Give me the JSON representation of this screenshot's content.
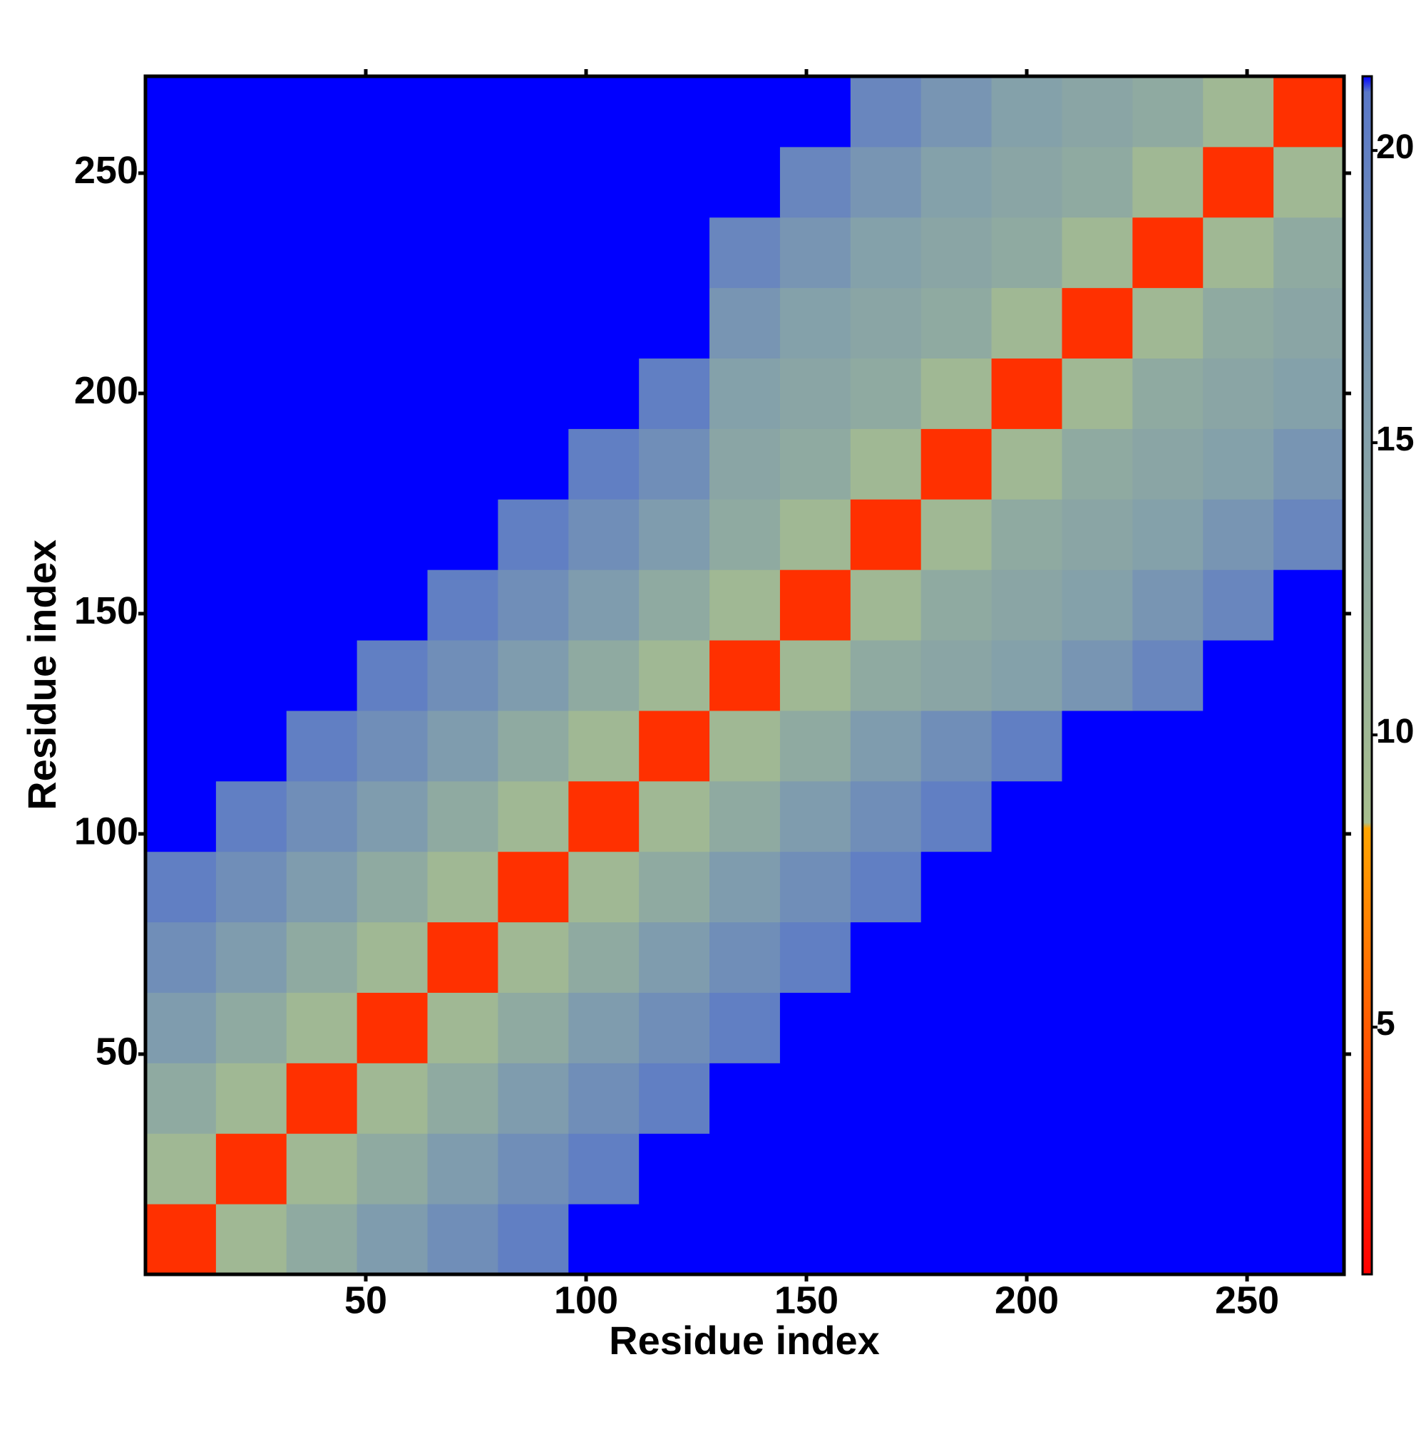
{
  "chart_data": {
    "type": "heatmap",
    "xlabel": "Residue index",
    "ylabel": "Residue index",
    "xbins": [
      0,
      16,
      32,
      48,
      64,
      80,
      96,
      112,
      128,
      144,
      160,
      176,
      192,
      208,
      224,
      240,
      256,
      272
    ],
    "ybins": [
      0,
      16,
      32,
      48,
      64,
      80,
      96,
      112,
      128,
      144,
      160,
      176,
      192,
      208,
      224,
      240,
      256,
      272
    ],
    "xlim": [
      0,
      272
    ],
    "ylim": [
      0,
      272
    ],
    "xticks": [
      50,
      100,
      150,
      200,
      250
    ],
    "yticks": [
      50,
      100,
      150,
      200,
      250
    ],
    "z": [
      [
        3,
        10,
        13,
        16,
        18,
        20,
        22,
        22,
        22,
        22,
        22,
        22,
        22,
        22,
        22,
        22,
        22
      ],
      [
        10,
        3,
        10,
        13,
        16,
        18,
        20,
        22,
        22,
        22,
        22,
        22,
        22,
        22,
        22,
        22,
        22
      ],
      [
        13,
        10,
        3,
        10,
        13,
        16,
        18,
        20,
        22,
        22,
        22,
        22,
        22,
        22,
        22,
        22,
        22
      ],
      [
        16,
        13,
        10,
        3,
        10,
        13,
        16,
        18,
        20,
        22,
        22,
        22,
        22,
        22,
        22,
        22,
        22
      ],
      [
        18,
        16,
        13,
        10,
        3,
        10,
        13,
        16,
        18,
        20,
        22,
        22,
        22,
        22,
        22,
        22,
        22
      ],
      [
        20,
        18,
        16,
        13,
        10,
        3,
        10,
        13,
        16,
        18,
        20,
        22,
        22,
        22,
        22,
        22,
        22
      ],
      [
        22,
        20,
        18,
        16,
        13,
        10,
        3,
        10,
        13,
        16,
        18,
        20,
        22,
        22,
        22,
        22,
        22
      ],
      [
        22,
        22,
        20,
        18,
        16,
        13,
        10,
        3,
        10,
        13,
        16,
        18,
        20,
        22,
        22,
        22,
        22
      ],
      [
        22,
        22,
        22,
        20,
        18,
        16,
        13,
        10,
        3,
        10,
        13,
        14,
        15,
        17,
        19,
        22,
        22
      ],
      [
        22,
        22,
        22,
        22,
        20,
        18,
        16,
        13,
        10,
        3,
        10,
        13,
        14,
        15,
        17,
        19,
        22
      ],
      [
        22,
        22,
        22,
        22,
        22,
        20,
        18,
        16,
        13,
        10,
        3,
        10,
        13,
        14,
        15,
        17,
        19
      ],
      [
        22,
        22,
        22,
        22,
        22,
        22,
        20,
        18,
        14,
        13,
        10,
        3,
        10,
        13,
        14,
        15,
        17
      ],
      [
        22,
        22,
        22,
        22,
        22,
        22,
        22,
        20,
        15,
        14,
        13,
        10,
        3,
        10,
        13,
        14,
        15
      ],
      [
        22,
        22,
        22,
        22,
        22,
        22,
        22,
        22,
        17,
        15,
        14,
        13,
        10,
        3,
        10,
        13,
        14
      ],
      [
        22,
        22,
        22,
        22,
        22,
        22,
        22,
        22,
        19,
        17,
        15,
        14,
        13,
        10,
        3,
        10,
        13
      ],
      [
        22,
        22,
        22,
        22,
        22,
        22,
        22,
        22,
        22,
        19,
        17,
        15,
        14,
        13,
        10,
        3,
        10
      ],
      [
        22,
        22,
        22,
        22,
        22,
        22,
        22,
        22,
        22,
        22,
        19,
        17,
        15,
        14,
        13,
        10,
        3
      ]
    ],
    "colorscale": [
      [
        0.77,
        "#ff0000"
      ],
      [
        8.4,
        "#ffa500"
      ],
      [
        8.5,
        "#a8bf8e"
      ],
      [
        16,
        "#7f9cae"
      ],
      [
        21,
        "#5a78c8"
      ],
      [
        21.27,
        "#0000ff"
      ]
    ],
    "clim": [
      0.77,
      21.27
    ],
    "cticks": [
      5,
      10,
      15,
      20
    ]
  }
}
